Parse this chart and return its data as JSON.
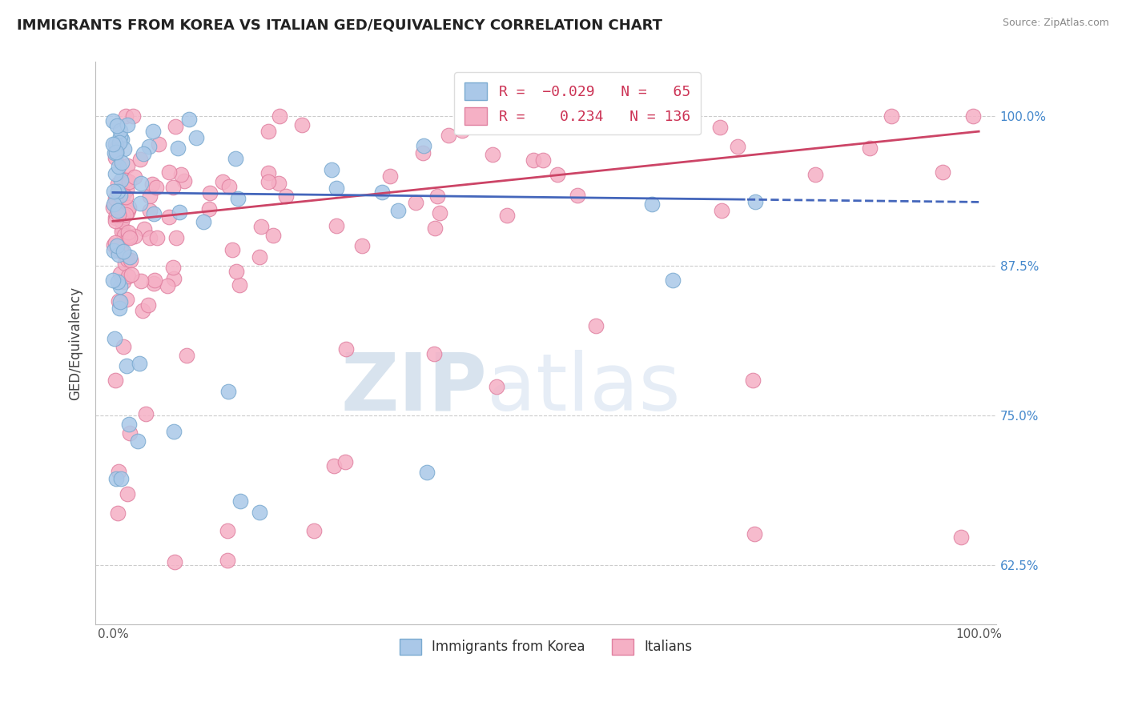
{
  "title": "IMMIGRANTS FROM KOREA VS ITALIAN GED/EQUIVALENCY CORRELATION CHART",
  "source": "Source: ZipAtlas.com",
  "ylabel": "GED/Equivalency",
  "ytick_vals": [
    0.625,
    0.75,
    0.875,
    1.0
  ],
  "ytick_labels": [
    "62.5%",
    "75.0%",
    "87.5%",
    "100.0%"
  ],
  "xtick_vals": [
    0.0,
    1.0
  ],
  "xtick_labels": [
    "0.0%",
    "100.0%"
  ],
  "watermark_zip": "ZIP",
  "watermark_atlas": "atlas",
  "korea_color": "#aac8e8",
  "korea_edge": "#7aaad0",
  "italian_color": "#f5b0c5",
  "italian_edge": "#e080a0",
  "korea_line_color": "#4466bb",
  "italian_line_color": "#cc4466",
  "background": "#ffffff",
  "grid_color": "#cccccc",
  "korea_R": -0.029,
  "korea_N": 65,
  "italian_R": 0.234,
  "italian_N": 136,
  "xlim": [
    -0.02,
    1.02
  ],
  "ylim": [
    0.575,
    1.045
  ],
  "legend_patch_korea": "#aac8e8",
  "legend_patch_italian": "#f5b0c5",
  "r_val_color": "#cc3355",
  "n_val_color": "#333333"
}
